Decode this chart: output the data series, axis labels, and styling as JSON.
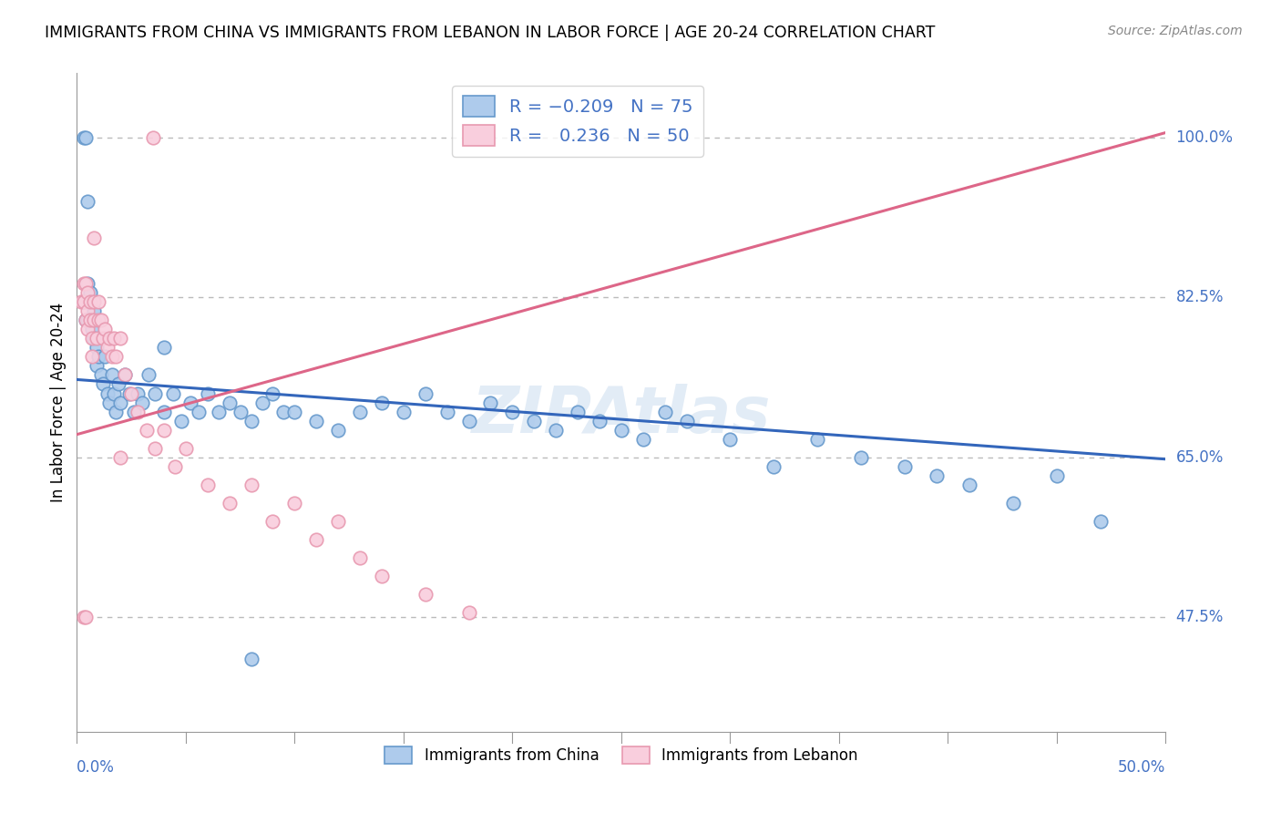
{
  "title": "IMMIGRANTS FROM CHINA VS IMMIGRANTS FROM LEBANON IN LABOR FORCE | AGE 20-24 CORRELATION CHART",
  "source": "Source: ZipAtlas.com",
  "ylabel_label": "In Labor Force | Age 20-24",
  "y_ticks": [
    0.475,
    0.65,
    0.825,
    1.0
  ],
  "y_tick_labels": [
    "47.5%",
    "65.0%",
    "82.5%",
    "100.0%"
  ],
  "x_min": 0.0,
  "x_max": 0.5,
  "y_min": 0.35,
  "y_max": 1.07,
  "china_R": -0.209,
  "china_N": 75,
  "lebanon_R": 0.236,
  "lebanon_N": 50,
  "china_color": "#AECBEC",
  "china_edge_color": "#6699CC",
  "lebanon_color": "#F9CEDD",
  "lebanon_edge_color": "#E899B0",
  "china_line_color": "#3366BB",
  "lebanon_line_color": "#DD6688",
  "watermark": "ZIPAtlas",
  "china_line_y0": 0.735,
  "china_line_y1": 0.648,
  "lebanon_line_y0": 0.675,
  "lebanon_line_y1": 1.005,
  "china_x": [
    0.003,
    0.004,
    0.005,
    0.005,
    0.006,
    0.007,
    0.008,
    0.008,
    0.009,
    0.009,
    0.01,
    0.011,
    0.012,
    0.013,
    0.014,
    0.015,
    0.016,
    0.017,
    0.018,
    0.019,
    0.02,
    0.022,
    0.024,
    0.026,
    0.028,
    0.03,
    0.033,
    0.036,
    0.04,
    0.044,
    0.048,
    0.052,
    0.056,
    0.06,
    0.065,
    0.07,
    0.075,
    0.08,
    0.085,
    0.09,
    0.095,
    0.1,
    0.11,
    0.12,
    0.13,
    0.14,
    0.15,
    0.16,
    0.17,
    0.18,
    0.19,
    0.2,
    0.21,
    0.22,
    0.23,
    0.24,
    0.25,
    0.26,
    0.27,
    0.28,
    0.3,
    0.32,
    0.34,
    0.36,
    0.38,
    0.395,
    0.41,
    0.43,
    0.45,
    0.47,
    0.003,
    0.004,
    0.005,
    0.04,
    0.08
  ],
  "china_y": [
    0.82,
    0.8,
    0.84,
    0.8,
    0.83,
    0.79,
    0.81,
    0.78,
    0.77,
    0.75,
    0.76,
    0.74,
    0.73,
    0.76,
    0.72,
    0.71,
    0.74,
    0.72,
    0.7,
    0.73,
    0.71,
    0.74,
    0.72,
    0.7,
    0.72,
    0.71,
    0.74,
    0.72,
    0.7,
    0.72,
    0.69,
    0.71,
    0.7,
    0.72,
    0.7,
    0.71,
    0.7,
    0.69,
    0.71,
    0.72,
    0.7,
    0.7,
    0.69,
    0.68,
    0.7,
    0.71,
    0.7,
    0.72,
    0.7,
    0.69,
    0.71,
    0.7,
    0.69,
    0.68,
    0.7,
    0.69,
    0.68,
    0.67,
    0.7,
    0.69,
    0.67,
    0.64,
    0.67,
    0.65,
    0.64,
    0.63,
    0.62,
    0.6,
    0.63,
    0.58,
    1.0,
    1.0,
    0.93,
    0.77,
    0.43
  ],
  "lebanon_x": [
    0.002,
    0.003,
    0.003,
    0.004,
    0.004,
    0.005,
    0.005,
    0.005,
    0.006,
    0.006,
    0.007,
    0.007,
    0.008,
    0.008,
    0.009,
    0.01,
    0.01,
    0.011,
    0.012,
    0.013,
    0.014,
    0.015,
    0.016,
    0.017,
    0.018,
    0.02,
    0.022,
    0.025,
    0.028,
    0.032,
    0.036,
    0.04,
    0.045,
    0.05,
    0.06,
    0.07,
    0.08,
    0.09,
    0.1,
    0.11,
    0.12,
    0.13,
    0.14,
    0.16,
    0.18,
    0.003,
    0.004,
    0.008,
    0.02,
    0.035
  ],
  "lebanon_y": [
    0.82,
    0.84,
    0.82,
    0.8,
    0.84,
    0.83,
    0.81,
    0.79,
    0.82,
    0.8,
    0.78,
    0.76,
    0.82,
    0.8,
    0.78,
    0.82,
    0.8,
    0.8,
    0.78,
    0.79,
    0.77,
    0.78,
    0.76,
    0.78,
    0.76,
    0.78,
    0.74,
    0.72,
    0.7,
    0.68,
    0.66,
    0.68,
    0.64,
    0.66,
    0.62,
    0.6,
    0.62,
    0.58,
    0.6,
    0.56,
    0.58,
    0.54,
    0.52,
    0.5,
    0.48,
    0.475,
    0.475,
    0.89,
    0.65,
    1.0
  ]
}
